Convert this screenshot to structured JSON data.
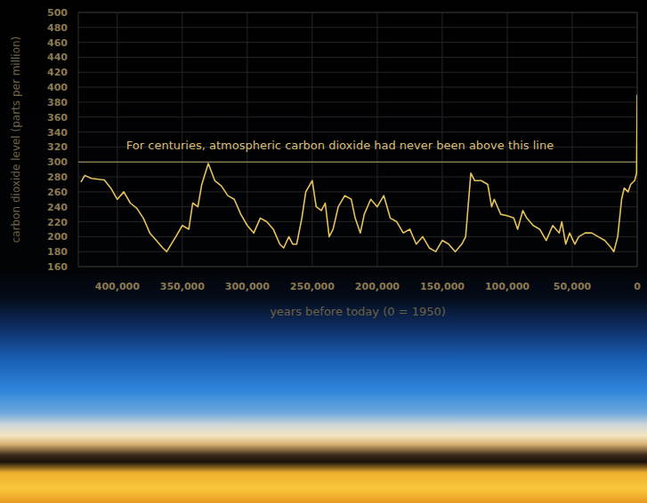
{
  "chart_data": {
    "type": "line",
    "x_label": "years before today (0 = 1950)",
    "y_label": "carbon dioxide level (parts per million)",
    "color": "#e6c25c",
    "grid": true,
    "xlim": [
      430000,
      0
    ],
    "ylim": [
      160,
      500
    ],
    "xticks": [
      {
        "value": 400000,
        "label": "400,000"
      },
      {
        "value": 350000,
        "label": "350,000"
      },
      {
        "value": 300000,
        "label": "300,000"
      },
      {
        "value": 250000,
        "label": "250,000"
      },
      {
        "value": 200000,
        "label": "200,000"
      },
      {
        "value": 150000,
        "label": "150,000"
      },
      {
        "value": 100000,
        "label": "100,000"
      },
      {
        "value": 50000,
        "label": "50,000"
      },
      0
    ],
    "yticks": [
      160,
      180,
      200,
      220,
      240,
      260,
      280,
      300,
      320,
      340,
      360,
      380,
      400,
      420,
      440,
      460,
      480,
      500
    ],
    "annotations": [
      {
        "text": "For centuries, atmospheric carbon dioxide had never been above this line",
        "y": 300
      }
    ],
    "x": [
      428000,
      425000,
      420000,
      410000,
      405000,
      400000,
      395000,
      390000,
      385000,
      380000,
      375000,
      370000,
      365000,
      362000,
      355000,
      350000,
      345000,
      342000,
      338000,
      335000,
      330000,
      325000,
      320000,
      315000,
      310000,
      305000,
      300000,
      295000,
      290000,
      285000,
      280000,
      275000,
      272000,
      268000,
      265000,
      262000,
      258000,
      255000,
      250000,
      247000,
      243000,
      240000,
      237000,
      234000,
      230000,
      225000,
      220000,
      217000,
      213000,
      210000,
      205000,
      200000,
      195000,
      190000,
      185000,
      180000,
      175000,
      170000,
      165000,
      160000,
      155000,
      150000,
      145000,
      140000,
      135000,
      132000,
      128000,
      125000,
      120000,
      115000,
      112000,
      110000,
      105000,
      100000,
      95000,
      92000,
      88000,
      85000,
      80000,
      75000,
      70000,
      65000,
      60000,
      58000,
      55000,
      52000,
      48000,
      45000,
      40000,
      35000,
      30000,
      25000,
      20000,
      18000,
      15000,
      12000,
      10000,
      7000,
      5000,
      2000,
      500,
      0
    ],
    "values": [
      273,
      282,
      278,
      276,
      265,
      250,
      260,
      245,
      238,
      225,
      205,
      195,
      185,
      180,
      200,
      215,
      210,
      245,
      240,
      270,
      298,
      275,
      268,
      255,
      250,
      230,
      215,
      205,
      225,
      220,
      210,
      190,
      185,
      200,
      190,
      190,
      225,
      260,
      275,
      240,
      235,
      245,
      200,
      210,
      240,
      255,
      250,
      225,
      205,
      230,
      250,
      240,
      255,
      225,
      220,
      205,
      210,
      190,
      200,
      185,
      180,
      195,
      190,
      180,
      190,
      200,
      285,
      275,
      275,
      270,
      240,
      250,
      230,
      228,
      225,
      210,
      235,
      225,
      215,
      210,
      195,
      215,
      205,
      220,
      190,
      205,
      190,
      200,
      205,
      205,
      200,
      195,
      185,
      180,
      200,
      250,
      265,
      260,
      270,
      275,
      285,
      390
    ]
  }
}
